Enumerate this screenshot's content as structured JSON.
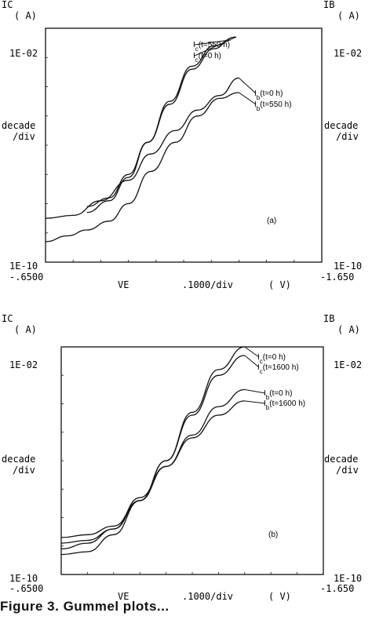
{
  "figure": {
    "caption_fragment": "Figure 3. Gummel plots..."
  },
  "chart_data": [
    {
      "type": "line",
      "panel_label": "(a)",
      "left_axis_unit": "IC",
      "left_axis_unit2": "( A)",
      "right_axis_unit": "IB",
      "right_axis_unit2": "( A)",
      "y_top_label": "1E-02",
      "y_bottom_label": "1E-10",
      "y_scale_label_1": "decade",
      "y_scale_label_2": "/div",
      "x_left_label": "-.6500",
      "x_right_label": "-1.650",
      "x_axis_name": "VE",
      "x_scale_label": ".1000/div",
      "x_unit": "( V)",
      "xlim": [
        -0.65,
        -1.65
      ],
      "ylim_log10": [
        -10,
        -2
      ],
      "series": [
        {
          "name": "Ic(t=550 h)",
          "x": [
            -0.8,
            -0.88,
            -0.95,
            -1.02,
            -1.1,
            -1.18,
            -1.26,
            -1.32
          ],
          "y": [
            -8.1,
            -7.8,
            -7.0,
            -5.9,
            -4.6,
            -3.4,
            -2.7,
            -2.4
          ]
        },
        {
          "name": "Ic(t=0 h)",
          "x": [
            -0.8,
            -0.88,
            -0.95,
            -1.02,
            -1.1,
            -1.18,
            -1.26,
            -1.34
          ],
          "y": [
            -8.3,
            -7.9,
            -7.1,
            -5.9,
            -4.5,
            -3.3,
            -2.6,
            -2.3
          ]
        },
        {
          "name": "Ib(t=0 h)",
          "x": [
            -0.65,
            -0.75,
            -0.85,
            -0.95,
            -1.03,
            -1.12,
            -1.2,
            -1.28,
            -1.35
          ],
          "y": [
            -8.5,
            -8.4,
            -7.9,
            -7.2,
            -6.3,
            -5.5,
            -4.8,
            -4.3,
            -3.7
          ]
        },
        {
          "name": "Ib(t=550 h)",
          "x": [
            -0.65,
            -0.73,
            -0.8,
            -0.88,
            -0.95,
            -1.03,
            -1.12,
            -1.2,
            -1.28,
            -1.35
          ],
          "y": [
            -9.3,
            -9.1,
            -8.9,
            -8.6,
            -8.0,
            -6.9,
            -5.9,
            -5.0,
            -4.4,
            -4.2
          ]
        }
      ]
    },
    {
      "type": "line",
      "panel_label": "(b)",
      "left_axis_unit": "IC",
      "left_axis_unit2": "( A)",
      "right_axis_unit": "IB",
      "right_axis_unit2": "( A)",
      "y_top_label": "1E-02",
      "y_bottom_label": "1E-10",
      "y_scale_label_1": "decade",
      "y_scale_label_2": "/div",
      "x_left_label": "-.6500",
      "x_right_label": "-1.650",
      "x_axis_name": "VE",
      "x_scale_label": ".1000/div",
      "x_unit": "( V)",
      "xlim": [
        -0.65,
        -1.65
      ],
      "ylim_log10": [
        -10,
        -2
      ],
      "series": [
        {
          "name": "Ic(t=0 h)",
          "x": [
            -0.65,
            -0.75,
            -0.85,
            -0.95,
            -1.05,
            -1.15,
            -1.25,
            -1.35
          ],
          "y": [
            -9.3,
            -9.2,
            -8.6,
            -7.4,
            -6.0,
            -4.3,
            -2.8,
            -2.0
          ]
        },
        {
          "name": "Ic(t=1600 h)",
          "x": [
            -0.65,
            -0.75,
            -0.85,
            -0.95,
            -1.05,
            -1.15,
            -1.25,
            -1.35
          ],
          "y": [
            -8.9,
            -8.8,
            -8.4,
            -7.4,
            -6.0,
            -4.4,
            -3.0,
            -2.3
          ]
        },
        {
          "name": "Ib(t=0 h)",
          "x": [
            -0.65,
            -0.75,
            -0.85,
            -0.95,
            -1.05,
            -1.15,
            -1.25,
            -1.35
          ],
          "y": [
            -9.1,
            -8.9,
            -8.4,
            -7.3,
            -6.2,
            -5.1,
            -4.1,
            -3.5
          ]
        },
        {
          "name": "Ib(t=1600 h)",
          "x": [
            -0.65,
            -0.75,
            -0.85,
            -0.95,
            -1.05,
            -1.15,
            -1.25,
            -1.35
          ],
          "y": [
            -8.7,
            -8.6,
            -8.3,
            -7.4,
            -6.2,
            -5.2,
            -4.4,
            -3.9
          ]
        }
      ]
    }
  ]
}
